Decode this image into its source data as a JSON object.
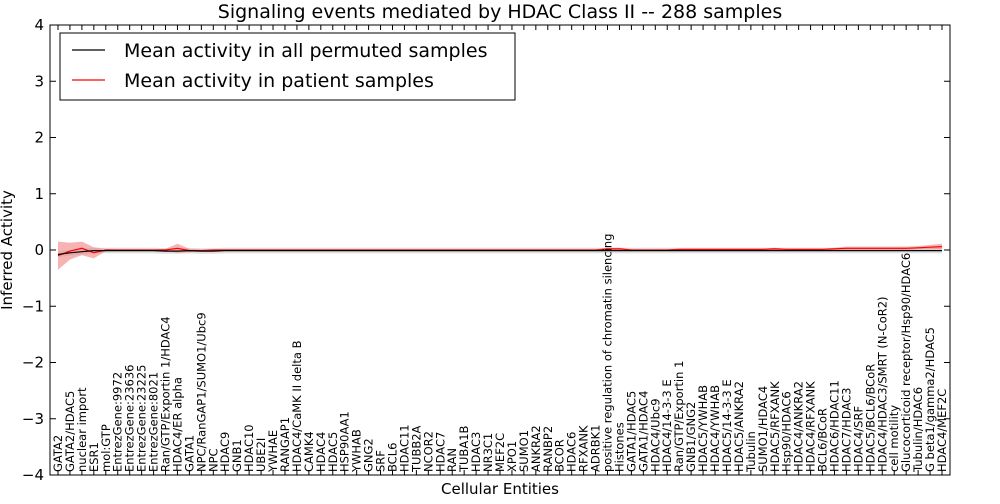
{
  "chart_data": {
    "type": "line",
    "title": "Signaling events mediated by HDAC Class II -- 288 samples",
    "xlabel": "Cellular Entities",
    "ylabel": "Inferred Activity",
    "ylim": [
      -4,
      4
    ],
    "yticks": [
      "4",
      "3",
      "2",
      "1",
      "0",
      "−1",
      "−2",
      "−3",
      "−4"
    ],
    "legend": {
      "placement": "top-left",
      "entries": [
        {
          "label": "Mean activity in all permuted samples",
          "color": "#000000"
        },
        {
          "label": "Mean activity in patient samples",
          "color": "#ff0000"
        }
      ]
    },
    "colors": {
      "permuted": "#000000",
      "patient": "#ff0000",
      "patient_band": "#f08080",
      "permuted_band": "#bbbbbb"
    },
    "categories": [
      "GATA2",
      "GATA2/HDAC5",
      "nuclear import",
      "ESR1",
      "mol:GTP",
      "EntrezGene:9972",
      "EntrezGene:23636",
      "EntrezGene:23225",
      "EntrezGene:8021",
      "Ran/GTP/Exportin 1/HDAC4",
      "HDAC4/ER alpha",
      "GATA1",
      "NPC/RanGAP1/SUMO1/Ubc9",
      "NPC",
      "HDAC9",
      "GNB1",
      "HDAC10",
      "UBE2I",
      "YWHAE",
      "RANGAP1",
      "HDAC4/CaMK II delta B",
      "CAMK4",
      "HDAC4",
      "HDAC5",
      "HSP90AA1",
      "YWHAB",
      "GNG2",
      "SRF",
      "BCL6",
      "HDAC11",
      "TUBB2A",
      "NCOR2",
      "HDAC7",
      "RAN",
      "TUBA1B",
      "HDAC3",
      "NR3C1",
      "MEF2C",
      "XPO1",
      "SUMO1",
      "ANKRA2",
      "RANBP2",
      "BCOR",
      "HDAC6",
      "RFXANK",
      "ADRBK1",
      "positive regulation of chromatin silencing",
      "Histones",
      "GATA1/HDAC5",
      "GATA1/HDAC4",
      "HDAC4/Ubc9",
      "HDAC4/14-3-3 E",
      "Ran/GTP/Exportin 1",
      "GNB1/GNG2",
      "HDAC5/YWHAB",
      "HDAC4/YWHAB",
      "HDAC5/14-3-3 E",
      "HDAC5/ANKRA2",
      "Tubulin",
      "SUMO1/HDAC4",
      "HDAC5/RFXANK",
      "Hsp90/HDAC6",
      "HDAC4/ANKRA2",
      "HDAC4/RFXANK",
      "BCL6/BCoR",
      "HDAC6/HDAC11",
      "HDAC7/HDAC3",
      "HDAC4/SRF",
      "HDAC5/BCL6/BCoR",
      "HDAC4/HDAC3/SMRT (N-CoR2)",
      "cell motility",
      "Glucocorticoid receptor/Hsp90/HDAC6",
      "Tubulin/HDAC6",
      "G beta1/gamma2/HDAC5",
      "HDAC4/MEF2C"
    ],
    "series": [
      {
        "name": "Mean activity in all permuted samples",
        "values": [
          -0.08,
          -0.05,
          -0.03,
          -0.01,
          -0.01,
          -0.01,
          -0.01,
          -0.01,
          -0.01,
          -0.02,
          -0.02,
          -0.01,
          -0.02,
          -0.02,
          -0.01,
          -0.01,
          -0.01,
          -0.01,
          -0.01,
          -0.01,
          -0.01,
          -0.01,
          -0.01,
          -0.01,
          -0.01,
          -0.01,
          -0.01,
          -0.01,
          -0.01,
          -0.01,
          -0.01,
          -0.01,
          -0.01,
          -0.01,
          -0.01,
          -0.01,
          -0.01,
          -0.01,
          -0.01,
          -0.01,
          -0.01,
          -0.01,
          -0.01,
          -0.01,
          -0.01,
          -0.01,
          -0.01,
          -0.01,
          -0.01,
          -0.01,
          -0.01,
          -0.01,
          -0.01,
          -0.01,
          -0.01,
          -0.01,
          -0.01,
          -0.01,
          -0.01,
          -0.01,
          -0.01,
          -0.01,
          -0.01,
          -0.01,
          -0.01,
          -0.01,
          -0.01,
          -0.01,
          -0.01,
          -0.01,
          -0.01,
          -0.01,
          -0.01,
          -0.01,
          -0.01
        ],
        "band": 0.05
      },
      {
        "name": "Mean activity in patient samples",
        "values": [
          -0.1,
          -0.02,
          0.03,
          -0.05,
          0.0,
          0.0,
          0.0,
          0.0,
          0.0,
          0.0,
          0.03,
          -0.01,
          -0.01,
          0.0,
          0.0,
          0.0,
          0.0,
          0.0,
          0.0,
          0.0,
          0.0,
          0.0,
          0.0,
          0.0,
          0.0,
          0.0,
          0.0,
          0.0,
          0.0,
          0.0,
          0.0,
          0.0,
          0.0,
          0.0,
          0.0,
          0.0,
          0.0,
          0.0,
          0.0,
          0.0,
          0.0,
          0.0,
          0.0,
          0.0,
          0.0,
          0.0,
          0.02,
          0.02,
          0.0,
          0.0,
          0.0,
          0.0,
          0.01,
          0.01,
          0.01,
          0.01,
          0.01,
          0.01,
          0.01,
          0.01,
          0.02,
          0.01,
          0.01,
          0.01,
          0.01,
          0.02,
          0.03,
          0.03,
          0.03,
          0.03,
          0.03,
          0.03,
          0.04,
          0.05,
          0.06
        ],
        "band": [
          0.25,
          0.15,
          0.12,
          0.1,
          0.02,
          0.01,
          0.01,
          0.01,
          0.01,
          0.02,
          0.08,
          0.03,
          0.02,
          0.01,
          0.01,
          0.01,
          0.01,
          0.01,
          0.01,
          0.01,
          0.01,
          0.01,
          0.01,
          0.01,
          0.01,
          0.01,
          0.01,
          0.01,
          0.01,
          0.01,
          0.01,
          0.01,
          0.01,
          0.01,
          0.01,
          0.01,
          0.01,
          0.01,
          0.01,
          0.01,
          0.01,
          0.01,
          0.01,
          0.01,
          0.01,
          0.01,
          0.02,
          0.02,
          0.01,
          0.01,
          0.01,
          0.01,
          0.01,
          0.01,
          0.01,
          0.01,
          0.01,
          0.01,
          0.01,
          0.01,
          0.02,
          0.01,
          0.01,
          0.01,
          0.01,
          0.02,
          0.03,
          0.03,
          0.03,
          0.03,
          0.03,
          0.03,
          0.03,
          0.04,
          0.05
        ]
      }
    ]
  }
}
